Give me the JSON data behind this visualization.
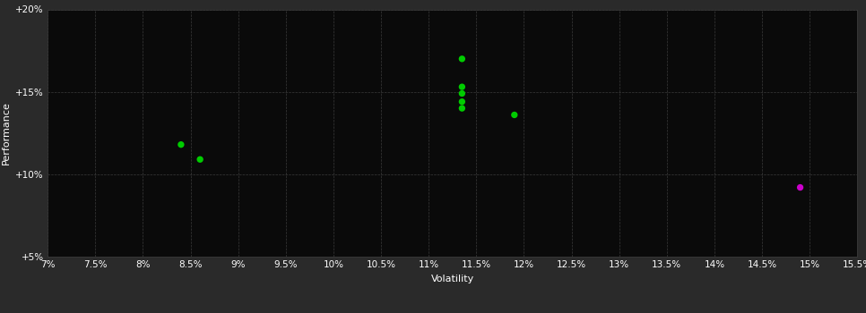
{
  "background_color": "#2a2a2a",
  "plot_bg_color": "#0a0a0a",
  "grid_color": "#3a3a3a",
  "text_color": "#ffffff",
  "xlabel": "Volatility",
  "ylabel": "Performance",
  "xlim": [
    0.07,
    0.155
  ],
  "ylim": [
    0.05,
    0.2
  ],
  "xticks": [
    0.07,
    0.075,
    0.08,
    0.085,
    0.09,
    0.095,
    0.1,
    0.105,
    0.11,
    0.115,
    0.12,
    0.125,
    0.13,
    0.135,
    0.14,
    0.145,
    0.15,
    0.155
  ],
  "xtick_labels": [
    "7%",
    "7.5%",
    "8%",
    "8.5%",
    "9%",
    "9.5%",
    "10%",
    "10.5%",
    "11%",
    "11.5%",
    "12%",
    "12.5%",
    "13%",
    "13.5%",
    "14%",
    "14.5%",
    "15%",
    "15.5%"
  ],
  "yticks": [
    0.05,
    0.1,
    0.15,
    0.2
  ],
  "ytick_labels": [
    "+5%",
    "+10%",
    "+15%",
    "+20%"
  ],
  "green_points": [
    [
      0.1135,
      0.17
    ],
    [
      0.1135,
      0.153
    ],
    [
      0.1135,
      0.149
    ],
    [
      0.1135,
      0.144
    ],
    [
      0.1135,
      0.14
    ],
    [
      0.119,
      0.136
    ],
    [
      0.084,
      0.118
    ],
    [
      0.086,
      0.109
    ]
  ],
  "magenta_points": [
    [
      0.149,
      0.092
    ]
  ],
  "green_color": "#00cc00",
  "magenta_color": "#cc00cc",
  "marker_size": 28,
  "font_size_axis": 8,
  "font_size_tick": 7.5
}
